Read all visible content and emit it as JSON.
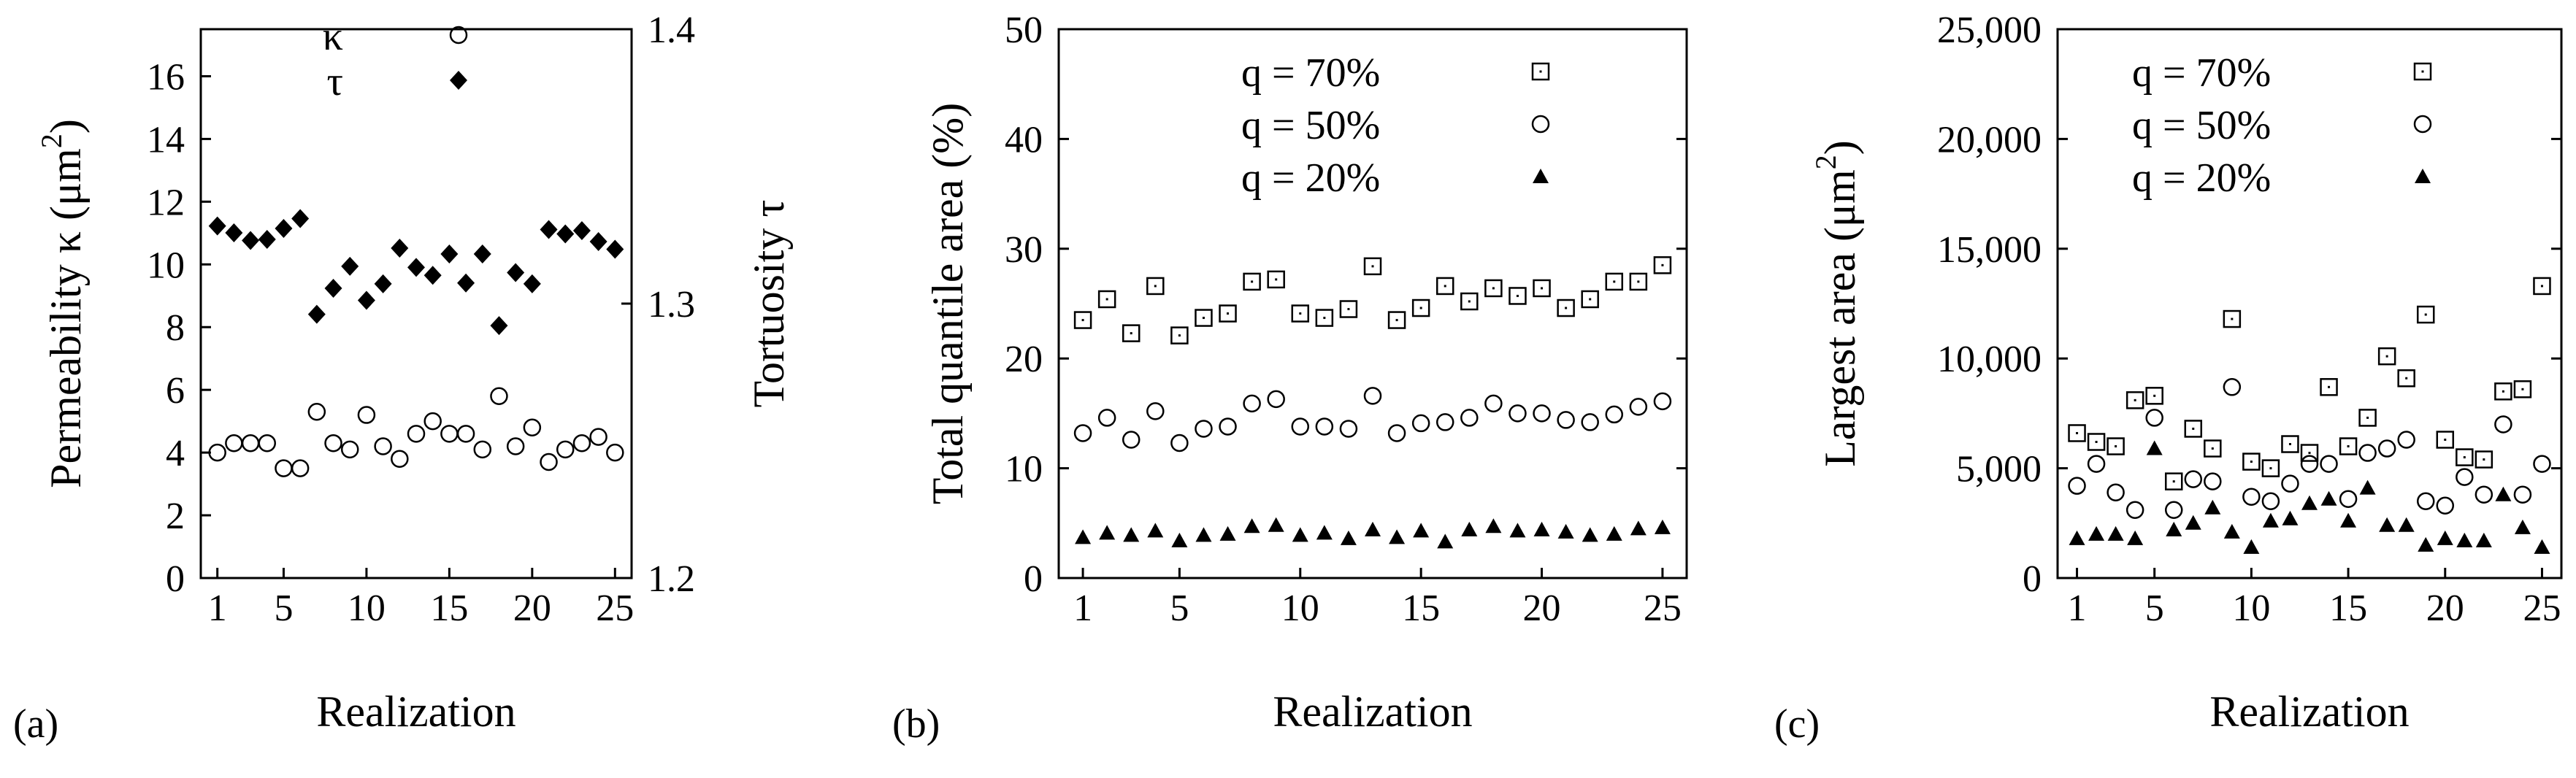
{
  "chart_data": [
    {
      "type": "scatter",
      "panel_label": "(a)",
      "xlabel": "Realization",
      "ylabel": "Permeability κ (μm",
      "ylabel_sup": "2",
      "ylabel_close": ")",
      "y2label": "Tortuosity τ",
      "xlim": [
        0,
        26
      ],
      "ylim": [
        0,
        17.5
      ],
      "y2lim": [
        1.2,
        1.4
      ],
      "xticks": [
        "1",
        "5",
        "10",
        "15",
        "20",
        "25"
      ],
      "yticks": [
        "0",
        "2",
        "4",
        "6",
        "8",
        "10",
        "12",
        "14",
        "16"
      ],
      "y2ticks": [
        "1.2",
        "1.3",
        "1.4"
      ],
      "legend": [
        {
          "label": "κ",
          "marker": "circle"
        },
        {
          "label": "τ",
          "marker": "diamond"
        }
      ],
      "x": [
        1,
        2,
        3,
        4,
        5,
        6,
        7,
        8,
        9,
        10,
        11,
        12,
        13,
        14,
        15,
        16,
        17,
        18,
        19,
        20,
        21,
        22,
        23,
        24,
        25
      ],
      "series": [
        {
          "name": "κ",
          "axis": "left",
          "marker": "circle",
          "values": [
            4.0,
            4.3,
            4.3,
            4.3,
            3.5,
            3.5,
            5.3,
            4.3,
            4.1,
            5.2,
            4.2,
            3.8,
            4.6,
            5.0,
            4.6,
            4.6,
            4.1,
            5.8,
            4.2,
            4.8,
            3.7,
            4.1,
            4.3,
            4.5,
            4.0
          ]
        },
        {
          "name": "τ",
          "axis": "right",
          "marker": "diamond",
          "values": [
            1.3283,
            1.3258,
            1.323,
            1.3234,
            1.3274,
            1.331,
            1.2961,
            1.3056,
            1.3136,
            1.3012,
            1.3072,
            1.3202,
            1.3132,
            1.3103,
            1.3181,
            1.3075,
            1.3181,
            1.292,
            1.3113,
            1.3072,
            1.327,
            1.3254,
            1.3266,
            1.3226,
            1.3198
          ]
        }
      ]
    },
    {
      "type": "scatter",
      "panel_label": "(b)",
      "xlabel": "Realization",
      "ylabel": "Total quantile area (%)",
      "xlim": [
        0,
        26
      ],
      "ylim": [
        0,
        50
      ],
      "xticks": [
        "1",
        "5",
        "10",
        "15",
        "20",
        "25"
      ],
      "yticks": [
        "0",
        "10",
        "20",
        "30",
        "40",
        "50"
      ],
      "legend": [
        {
          "label": "q = 70%",
          "marker": "square"
        },
        {
          "label": "q = 50%",
          "marker": "circle"
        },
        {
          "label": "q = 20%",
          "marker": "triangle"
        }
      ],
      "x": [
        1,
        2,
        3,
        4,
        5,
        6,
        7,
        8,
        9,
        10,
        11,
        12,
        13,
        14,
        15,
        16,
        17,
        18,
        19,
        20,
        21,
        22,
        23,
        24,
        25
      ],
      "series": [
        {
          "name": "q = 70%",
          "marker": "square",
          "values": [
            23.5,
            25.4,
            22.3,
            26.6,
            22.1,
            23.7,
            24.1,
            27.0,
            27.2,
            24.1,
            23.7,
            24.5,
            28.4,
            23.5,
            24.6,
            26.6,
            25.2,
            26.4,
            25.7,
            26.4,
            24.6,
            25.4,
            27.0,
            27.0,
            28.5
          ]
        },
        {
          "name": "q = 50%",
          "marker": "circle",
          "values": [
            13.2,
            14.6,
            12.6,
            15.2,
            12.3,
            13.6,
            13.8,
            15.9,
            16.3,
            13.8,
            13.8,
            13.6,
            16.6,
            13.2,
            14.1,
            14.2,
            14.6,
            15.9,
            15.0,
            15.0,
            14.4,
            14.2,
            14.9,
            15.6,
            16.1
          ]
        },
        {
          "name": "q = 20%",
          "marker": "triangle",
          "values": [
            3.7,
            4.1,
            3.9,
            4.3,
            3.4,
            3.9,
            4.0,
            4.7,
            4.8,
            3.9,
            4.1,
            3.6,
            4.4,
            3.7,
            4.3,
            3.3,
            4.4,
            4.7,
            4.3,
            4.4,
            4.2,
            3.9,
            4.0,
            4.5,
            4.6
          ]
        }
      ]
    },
    {
      "type": "scatter",
      "panel_label": "(c)",
      "xlabel": "Realization",
      "ylabel": "Largest area (μm",
      "ylabel_sup": "2",
      "ylabel_close": ")",
      "xlim": [
        0,
        26
      ],
      "ylim": [
        0,
        25000
      ],
      "xticks": [
        "1",
        "5",
        "10",
        "15",
        "20",
        "25"
      ],
      "yticks": [
        "0",
        "5,000",
        "10,000",
        "15,000",
        "20,000",
        "25,000"
      ],
      "legend": [
        {
          "label": "q = 70%",
          "marker": "square"
        },
        {
          "label": "q = 50%",
          "marker": "circle"
        },
        {
          "label": "q = 20%",
          "marker": "triangle"
        }
      ],
      "x": [
        1,
        2,
        3,
        4,
        5,
        6,
        7,
        8,
        9,
        10,
        11,
        12,
        13,
        14,
        15,
        16,
        17,
        18,
        19,
        20,
        21,
        22,
        23,
        24,
        25
      ],
      "series": [
        {
          "name": "q = 70%",
          "marker": "square",
          "values": [
            6600,
            6200,
            6000,
            8100,
            8300,
            4400,
            6800,
            5900,
            11800,
            5300,
            5000,
            6100,
            5700,
            8700,
            6000,
            7300,
            10100,
            9100,
            12000,
            6300,
            5500,
            5400,
            8500,
            8600,
            13300
          ]
        },
        {
          "name": "q = 50%",
          "marker": "circle",
          "values": [
            4200,
            5200,
            3900,
            3100,
            7300,
            3100,
            4500,
            4400,
            8700,
            3700,
            3500,
            4300,
            5200,
            5200,
            3600,
            5700,
            5900,
            6300,
            3500,
            3300,
            4600,
            3800,
            7000,
            3800,
            5200
          ]
        },
        {
          "name": "q = 20%",
          "marker": "triangle",
          "values": [
            1800,
            2000,
            2000,
            1800,
            5900,
            2200,
            2500,
            3200,
            2100,
            1400,
            2600,
            2700,
            3400,
            3600,
            2600,
            4100,
            2400,
            2400,
            1500,
            1800,
            1700,
            1700,
            3800,
            2300,
            1400
          ]
        }
      ]
    }
  ]
}
